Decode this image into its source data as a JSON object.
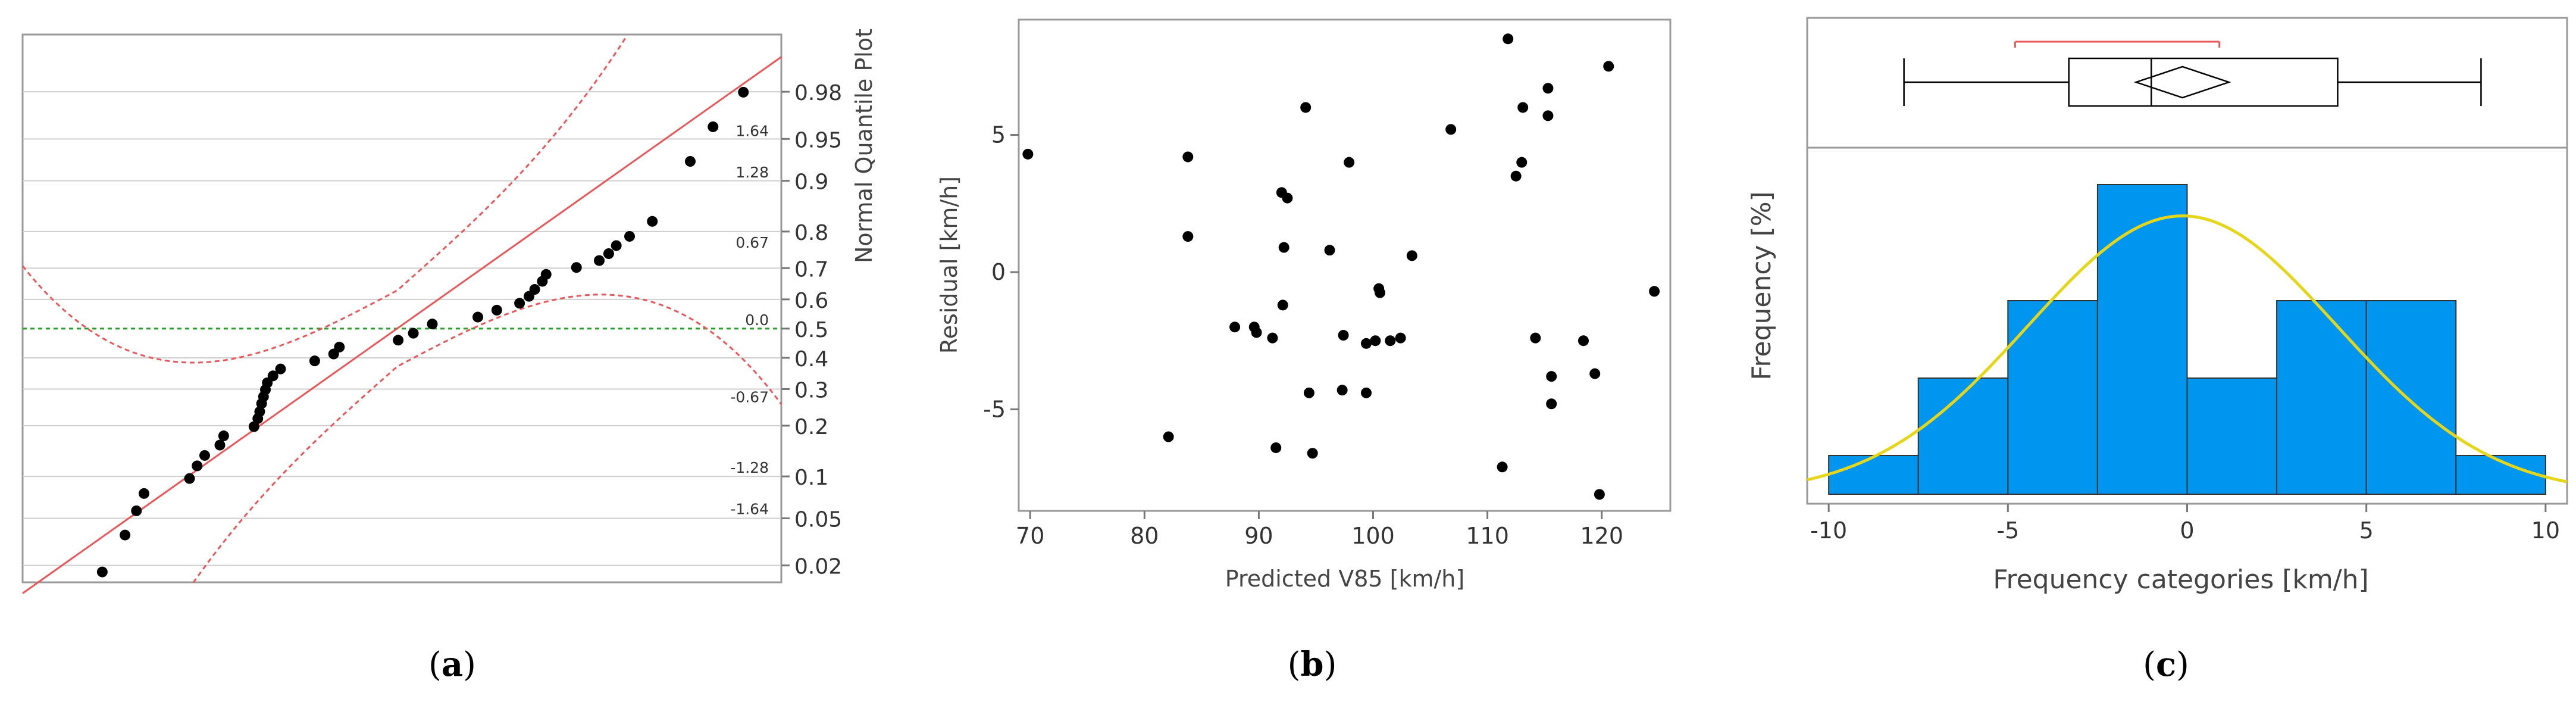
{
  "captions": {
    "a": "a",
    "b": "b",
    "c": "c"
  },
  "chart_data": [
    {
      "type": "scatter",
      "panel": "a",
      "right_axis_label": "Normal Quantile Plot",
      "right_ticks": [
        {
          "p": 0.98,
          "label": "0.98"
        },
        {
          "p": 0.95,
          "label": "0.95"
        },
        {
          "p": 0.9,
          "label": "0.9"
        },
        {
          "p": 0.8,
          "label": "0.8"
        },
        {
          "p": 0.7,
          "label": "0.7"
        },
        {
          "p": 0.6,
          "label": "0.6"
        },
        {
          "p": 0.5,
          "label": "0.5"
        },
        {
          "p": 0.4,
          "label": "0.4"
        },
        {
          "p": 0.3,
          "label": "0.3"
        },
        {
          "p": 0.2,
          "label": "0.2"
        },
        {
          "p": 0.1,
          "label": "0.1"
        },
        {
          "p": 0.05,
          "label": "0.05"
        },
        {
          "p": 0.02,
          "label": "0.02"
        }
      ],
      "z_ticks": [
        {
          "z": 1.64,
          "label": "1.64"
        },
        {
          "z": 1.28,
          "label": "1.28"
        },
        {
          "z": 0.67,
          "label": "0.67"
        },
        {
          "z": 0.0,
          "label": "0.0"
        },
        {
          "z": -0.67,
          "label": "-0.67"
        },
        {
          "z": -1.28,
          "label": "-1.28"
        },
        {
          "z": -1.64,
          "label": "-1.64"
        }
      ],
      "xlim": [
        -10,
        10
      ],
      "ylim_z": [
        -2.2,
        2.55
      ],
      "reference_line": {
        "mean": -0.13,
        "sd": 4.3,
        "color": "#e8585a"
      },
      "confidence_band_color": "#e8585a",
      "median_line_color": "#2ca02c",
      "points": [
        {
          "x": -7.9,
          "z": -2.11
        },
        {
          "x": -7.3,
          "z": -1.79
        },
        {
          "x": -7.0,
          "z": -1.58
        },
        {
          "x": -6.8,
          "z": -1.43
        },
        {
          "x": -5.6,
          "z": -1.3
        },
        {
          "x": -5.4,
          "z": -1.19
        },
        {
          "x": -5.2,
          "z": -1.1
        },
        {
          "x": -4.8,
          "z": -1.01
        },
        {
          "x": -4.7,
          "z": -0.93
        },
        {
          "x": -3.9,
          "z": -0.85
        },
        {
          "x": -3.8,
          "z": -0.78
        },
        {
          "x": -3.75,
          "z": -0.72
        },
        {
          "x": -3.7,
          "z": -0.65
        },
        {
          "x": -3.65,
          "z": -0.59
        },
        {
          "x": -3.6,
          "z": -0.53
        },
        {
          "x": -3.55,
          "z": -0.47
        },
        {
          "x": -3.4,
          "z": -0.41
        },
        {
          "x": -3.2,
          "z": -0.35
        },
        {
          "x": -2.3,
          "z": -0.28
        },
        {
          "x": -1.8,
          "z": -0.22
        },
        {
          "x": -1.65,
          "z": -0.16
        },
        {
          "x": -0.1,
          "z": -0.1
        },
        {
          "x": 0.3,
          "z": -0.04
        },
        {
          "x": 0.8,
          "z": 0.04
        },
        {
          "x": 2.0,
          "z": 0.1
        },
        {
          "x": 2.5,
          "z": 0.16
        },
        {
          "x": 3.1,
          "z": 0.22
        },
        {
          "x": 3.35,
          "z": 0.28
        },
        {
          "x": 3.5,
          "z": 0.34
        },
        {
          "x": 3.7,
          "z": 0.41
        },
        {
          "x": 3.8,
          "z": 0.47
        },
        {
          "x": 4.6,
          "z": 0.53
        },
        {
          "x": 5.2,
          "z": 0.59
        },
        {
          "x": 5.45,
          "z": 0.65
        },
        {
          "x": 5.65,
          "z": 0.72
        },
        {
          "x": 6.0,
          "z": 0.8
        },
        {
          "x": 6.6,
          "z": 0.93
        },
        {
          "x": 7.6,
          "z": 1.45
        },
        {
          "x": 8.2,
          "z": 1.75
        },
        {
          "x": 9.0,
          "z": 2.05
        }
      ]
    },
    {
      "type": "scatter",
      "panel": "b",
      "xlabel": "Predicted V85 [km/h]",
      "ylabel": "Residual [km/h]",
      "xlim": [
        69,
        126
      ],
      "ylim": [
        -8.7,
        9.2
      ],
      "xticks": [
        70,
        80,
        90,
        100,
        110,
        120
      ],
      "yticks": [
        -5,
        0,
        5
      ],
      "points": [
        {
          "x": 69.8,
          "y": 4.3
        },
        {
          "x": 82.1,
          "y": -6.0
        },
        {
          "x": 83.8,
          "y": 4.2
        },
        {
          "x": 83.8,
          "y": 1.3
        },
        {
          "x": 87.9,
          "y": -2.0
        },
        {
          "x": 89.6,
          "y": -2.0
        },
        {
          "x": 89.8,
          "y": -2.2
        },
        {
          "x": 91.2,
          "y": -2.4
        },
        {
          "x": 91.5,
          "y": -6.4
        },
        {
          "x": 92.0,
          "y": 2.9
        },
        {
          "x": 92.1,
          "y": -1.2
        },
        {
          "x": 92.2,
          "y": 0.9
        },
        {
          "x": 92.5,
          "y": 2.7
        },
        {
          "x": 94.1,
          "y": 6.0
        },
        {
          "x": 94.4,
          "y": -4.4
        },
        {
          "x": 94.7,
          "y": -6.6
        },
        {
          "x": 96.2,
          "y": 0.8
        },
        {
          "x": 97.3,
          "y": -4.3
        },
        {
          "x": 97.4,
          "y": -2.3
        },
        {
          "x": 97.9,
          "y": 4.0
        },
        {
          "x": 99.4,
          "y": -4.4
        },
        {
          "x": 99.4,
          "y": -2.6
        },
        {
          "x": 100.2,
          "y": -2.5
        },
        {
          "x": 100.5,
          "y": -0.6
        },
        {
          "x": 100.6,
          "y": -0.75
        },
        {
          "x": 101.5,
          "y": -2.5
        },
        {
          "x": 102.4,
          "y": -2.4
        },
        {
          "x": 103.4,
          "y": 0.6
        },
        {
          "x": 106.8,
          "y": 5.2
        },
        {
          "x": 111.3,
          "y": -7.1
        },
        {
          "x": 111.8,
          "y": 8.5
        },
        {
          "x": 112.5,
          "y": 3.5
        },
        {
          "x": 113.0,
          "y": 4.0
        },
        {
          "x": 113.1,
          "y": 6.0
        },
        {
          "x": 114.2,
          "y": -2.4
        },
        {
          "x": 115.3,
          "y": 6.7
        },
        {
          "x": 115.3,
          "y": 5.7
        },
        {
          "x": 115.6,
          "y": -3.8
        },
        {
          "x": 115.6,
          "y": -4.8
        },
        {
          "x": 118.4,
          "y": -2.5
        },
        {
          "x": 119.4,
          "y": -3.7
        },
        {
          "x": 119.8,
          "y": -8.1
        },
        {
          "x": 120.6,
          "y": 7.5
        },
        {
          "x": 124.6,
          "y": -0.7
        }
      ]
    },
    {
      "type": "bar",
      "panel": "c",
      "subtype": "histogram",
      "xlabel": "Frequency categories [km/h]",
      "ylabel": "Frequency [%]",
      "xlim": [
        -10.6,
        10.6
      ],
      "xticks": [
        -10,
        -5,
        0,
        5,
        10
      ],
      "bin_edges": [
        -10,
        -7.5,
        -5,
        -2.5,
        0,
        2.5,
        5,
        7.5,
        10
      ],
      "counts": [
        1,
        3,
        5,
        8,
        3,
        5,
        5,
        1
      ],
      "bar_color": "#0095ef",
      "normal_curve": {
        "mean": -0.13,
        "sd": 4.3,
        "color": "#e6d619"
      },
      "boxplot": {
        "whisker_low": -7.9,
        "q1": -3.3,
        "median": -1.0,
        "mean": -0.13,
        "q3": 4.2,
        "whisker_high": 8.2,
        "shortest_half": [
          -4.8,
          0.9
        ],
        "shortest_half_color": "#e8585a"
      }
    }
  ]
}
